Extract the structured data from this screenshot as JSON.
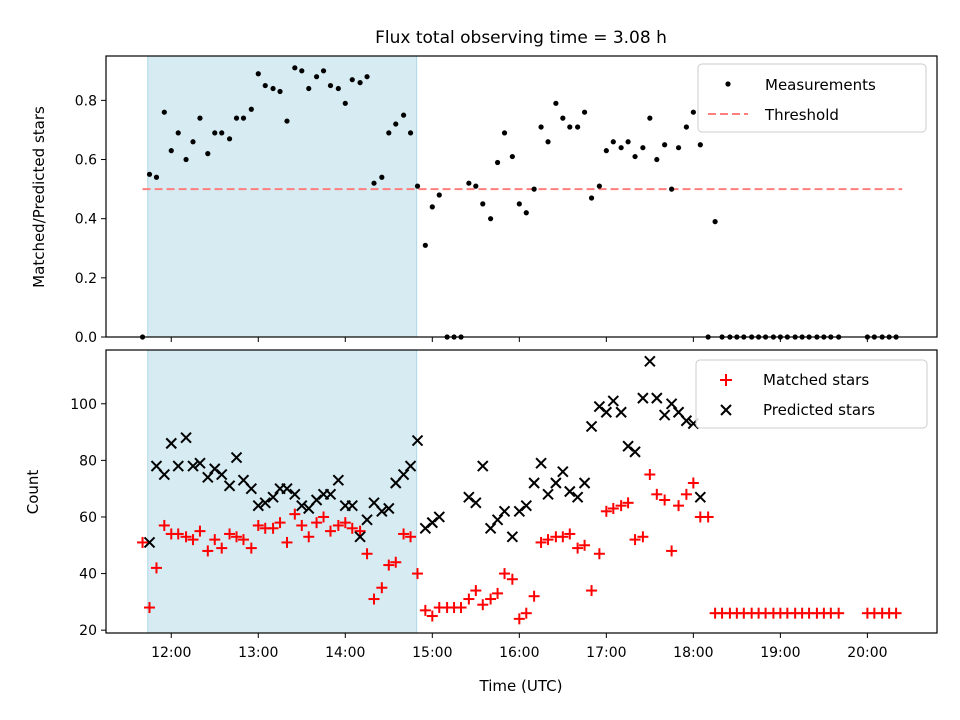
{
  "chart_data": {
    "type": "scatter",
    "title": "Flux total observing time = 3.08 h",
    "xlabel": "Time (UTC)",
    "x_tick_labels": [
      "12:00",
      "13:00",
      "14:00",
      "15:00",
      "16:00",
      "17:00",
      "18:00",
      "19:00",
      "20:00"
    ],
    "x_tick_hours": [
      12,
      13,
      14,
      15,
      16,
      17,
      18,
      19,
      20
    ],
    "xlim_hours": [
      11.25,
      20.8
    ],
    "shaded_interval_hours": [
      11.73,
      14.82
    ],
    "shade_color": "#add8e6",
    "top_panel": {
      "ylabel": "Matched/Predicted stars",
      "ylim": [
        0,
        0.95
      ],
      "y_tick_labels": [
        "0.0",
        "0.2",
        "0.4",
        "0.6",
        "0.8"
      ],
      "y_ticks": [
        0.0,
        0.2,
        0.4,
        0.6,
        0.8
      ],
      "threshold": {
        "name": "Threshold",
        "value": 0.5,
        "x_range_hours": [
          11.67,
          20.4
        ],
        "color": "#ff7f7f"
      },
      "series": [
        {
          "name": "Measurements",
          "marker": "dot",
          "color": "#000000",
          "x_hours": [
            11.67,
            11.75,
            11.83,
            11.92,
            12.0,
            12.08,
            12.17,
            12.25,
            12.33,
            12.42,
            12.5,
            12.58,
            12.67,
            12.75,
            12.83,
            12.92,
            13.0,
            13.08,
            13.17,
            13.25,
            13.33,
            13.42,
            13.5,
            13.58,
            13.67,
            13.75,
            13.83,
            13.92,
            14.0,
            14.08,
            14.17,
            14.25,
            14.33,
            14.42,
            14.5,
            14.58,
            14.67,
            14.75,
            14.83,
            14.92,
            15.0,
            15.08,
            15.17,
            15.25,
            15.33,
            15.42,
            15.5,
            15.58,
            15.67,
            15.75,
            15.83,
            15.92,
            16.0,
            16.08,
            16.17,
            16.25,
            16.33,
            16.42,
            16.5,
            16.58,
            16.67,
            16.75,
            16.83,
            16.92,
            17.0,
            17.08,
            17.17,
            17.25,
            17.33,
            17.42,
            17.5,
            17.58,
            17.67,
            17.75,
            17.83,
            17.92,
            18.0,
            18.08,
            18.17,
            18.25,
            18.33,
            18.42,
            18.5,
            18.58,
            18.67,
            18.75,
            18.83,
            18.92,
            19.0,
            19.08,
            19.17,
            19.25,
            19.33,
            19.42,
            19.5,
            19.58,
            19.67,
            20.0,
            20.08,
            20.17,
            20.25,
            20.33
          ],
          "y": [
            0.0,
            0.55,
            0.54,
            0.76,
            0.63,
            0.69,
            0.6,
            0.66,
            0.74,
            0.62,
            0.69,
            0.69,
            0.67,
            0.74,
            0.74,
            0.77,
            0.89,
            0.85,
            0.84,
            0.83,
            0.73,
            0.91,
            0.9,
            0.84,
            0.88,
            0.9,
            0.85,
            0.84,
            0.79,
            0.87,
            0.86,
            0.88,
            0.52,
            0.54,
            0.69,
            0.72,
            0.75,
            0.69,
            0.51,
            0.31,
            0.44,
            0.48,
            0.0,
            0.0,
            0.0,
            0.52,
            0.51,
            0.45,
            0.4,
            0.59,
            0.69,
            0.61,
            0.45,
            0.42,
            0.5,
            0.71,
            0.66,
            0.79,
            0.74,
            0.71,
            0.71,
            0.76,
            0.47,
            0.51,
            0.63,
            0.66,
            0.64,
            0.66,
            0.61,
            0.64,
            0.74,
            0.6,
            0.65,
            0.5,
            0.64,
            0.71,
            0.76,
            0.65,
            0.0,
            0.39,
            0.0,
            0.0,
            0.0,
            0.0,
            0.0,
            0.0,
            0.0,
            0.0,
            0.0,
            0.0,
            0.0,
            0.0,
            0.0,
            0.0,
            0.0,
            0.0,
            0.0,
            0.0,
            0.0,
            0.0,
            0.0,
            0.0
          ]
        }
      ],
      "legend": {
        "placement": "top-right",
        "items": [
          "Measurements",
          "Threshold"
        ]
      }
    },
    "bottom_panel": {
      "ylabel": "Count",
      "ylim": [
        19,
        119
      ],
      "y_tick_labels": [
        "20",
        "40",
        "60",
        "80",
        "100"
      ],
      "y_ticks": [
        20,
        40,
        60,
        80,
        100
      ],
      "series": [
        {
          "name": "Matched stars",
          "marker": "plus",
          "color": "#ff0000",
          "x_hours": [
            11.67,
            11.75,
            11.83,
            11.92,
            12.0,
            12.08,
            12.17,
            12.25,
            12.33,
            12.42,
            12.5,
            12.58,
            12.67,
            12.75,
            12.83,
            12.92,
            13.0,
            13.08,
            13.17,
            13.25,
            13.33,
            13.42,
            13.5,
            13.58,
            13.67,
            13.75,
            13.83,
            13.92,
            14.0,
            14.08,
            14.17,
            14.25,
            14.33,
            14.42,
            14.5,
            14.58,
            14.67,
            14.75,
            14.83,
            14.92,
            15.0,
            15.08,
            15.17,
            15.25,
            15.33,
            15.42,
            15.5,
            15.58,
            15.67,
            15.75,
            15.83,
            15.92,
            16.0,
            16.08,
            16.17,
            16.25,
            16.33,
            16.42,
            16.5,
            16.58,
            16.67,
            16.75,
            16.83,
            16.92,
            17.0,
            17.08,
            17.17,
            17.25,
            17.33,
            17.42,
            17.5,
            17.58,
            17.67,
            17.75,
            17.83,
            17.92,
            18.0,
            18.08,
            18.17,
            18.25,
            18.33,
            18.42,
            18.5,
            18.58,
            18.67,
            18.75,
            18.83,
            18.92,
            19.0,
            19.08,
            19.17,
            19.25,
            19.33,
            19.42,
            19.5,
            19.58,
            19.67,
            20.0,
            20.08,
            20.17,
            20.25,
            20.33
          ],
          "y": [
            51,
            28,
            42,
            57,
            54,
            54,
            53,
            52,
            55,
            48,
            52,
            49,
            54,
            53,
            52,
            49,
            57,
            56,
            56,
            58,
            51,
            61,
            57,
            53,
            58,
            60,
            55,
            57,
            58,
            56,
            55,
            47,
            31,
            35,
            43,
            44,
            54,
            53,
            40,
            27,
            25,
            28,
            28,
            28,
            28,
            31,
            34,
            29,
            31,
            33,
            40,
            38,
            24,
            26,
            32,
            51,
            52,
            53,
            53,
            54,
            49,
            50,
            34,
            47,
            62,
            63,
            64,
            65,
            52,
            53,
            75,
            68,
            66,
            48,
            64,
            68,
            72,
            60,
            60,
            26,
            26,
            26,
            26,
            26,
            26,
            26,
            26,
            26,
            26,
            26,
            26,
            26,
            26,
            26,
            26,
            26,
            26,
            26,
            26,
            26,
            26,
            26
          ]
        },
        {
          "name": "Predicted stars",
          "marker": "x",
          "color": "#000000",
          "x_hours": [
            11.75,
            11.83,
            11.92,
            12.0,
            12.08,
            12.17,
            12.25,
            12.33,
            12.42,
            12.5,
            12.58,
            12.67,
            12.75,
            12.83,
            12.92,
            13.0,
            13.08,
            13.17,
            13.25,
            13.33,
            13.42,
            13.5,
            13.58,
            13.67,
            13.75,
            13.83,
            13.92,
            14.0,
            14.08,
            14.17,
            14.25,
            14.33,
            14.42,
            14.5,
            14.58,
            14.67,
            14.75,
            14.83,
            14.92,
            15.0,
            15.08,
            15.42,
            15.5,
            15.58,
            15.67,
            15.75,
            15.83,
            15.92,
            16.0,
            16.08,
            16.17,
            16.25,
            16.33,
            16.42,
            16.5,
            16.58,
            16.67,
            16.75,
            16.83,
            16.92,
            17.0,
            17.08,
            17.17,
            17.25,
            17.33,
            17.42,
            17.5,
            17.58,
            17.67,
            17.75,
            17.83,
            17.92,
            18.0,
            18.08,
            18.25
          ],
          "y": [
            51,
            78,
            75,
            86,
            78,
            88,
            78,
            79,
            74,
            77,
            75,
            71,
            81,
            73,
            70,
            64,
            65,
            67,
            70,
            70,
            68,
            64,
            63,
            66,
            68,
            68,
            73,
            64,
            64,
            53,
            59,
            65,
            62,
            63,
            72,
            75,
            78,
            87,
            56,
            58,
            60,
            67,
            65,
            78,
            56,
            59,
            62,
            53,
            62,
            64,
            72,
            79,
            68,
            72,
            76,
            69,
            67,
            72,
            92,
            99,
            97,
            101,
            97,
            85,
            83,
            102,
            115,
            102,
            96,
            100,
            97,
            94,
            93,
            67,
            null
          ]
        }
      ],
      "legend": {
        "placement": "top-right",
        "items": [
          "Matched stars",
          "Predicted stars"
        ]
      }
    }
  }
}
